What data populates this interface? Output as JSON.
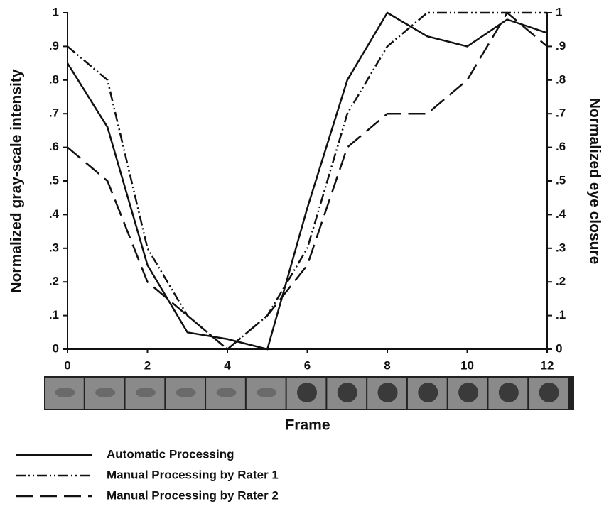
{
  "chart_data": {
    "type": "line",
    "x": [
      0,
      1,
      2,
      3,
      4,
      5,
      6,
      7,
      8,
      9,
      10,
      11,
      12
    ],
    "xlabel": "Frame",
    "ylabel": "Normalized gray-scale intensity",
    "y2label": "Normalized eye closure",
    "xlim": [
      0,
      12
    ],
    "xticks": [
      0,
      2,
      4,
      6,
      8,
      10,
      12
    ],
    "ylim": [
      0,
      1
    ],
    "yticks": [
      0,
      {
        "value": 0.1,
        "label": ".1"
      },
      {
        "value": 0.2,
        "label": ".2"
      },
      {
        "value": 0.3,
        "label": ".3"
      },
      {
        "value": 0.4,
        "label": ".4"
      },
      {
        "value": 0.5,
        "label": ".5"
      },
      {
        "value": 0.6,
        "label": ".6"
      },
      {
        "value": 0.7,
        "label": ".7"
      },
      {
        "value": 0.8,
        "label": ".8"
      },
      {
        "value": 0.9,
        "label": ".9"
      },
      1
    ],
    "y2lim": [
      0,
      1
    ],
    "y2ticks": [
      0,
      {
        "value": 0.1,
        "label": ".1"
      },
      {
        "value": 0.2,
        "label": ".2"
      },
      {
        "value": 0.3,
        "label": ".3"
      },
      {
        "value": 0.4,
        "label": ".4"
      },
      {
        "value": 0.5,
        "label": ".5"
      },
      {
        "value": 0.6,
        "label": ".6"
      },
      {
        "value": 0.7,
        "label": ".7"
      },
      {
        "value": 0.8,
        "label": ".8"
      },
      {
        "value": 0.9,
        "label": ".9"
      },
      1
    ],
    "series": [
      {
        "name": "Automatic Processing",
        "color": "#111111",
        "line_style": "solid",
        "values": [
          0.85,
          0.66,
          0.25,
          0.05,
          0.03,
          0,
          0.42,
          0.8,
          1.0,
          0.93,
          0.9,
          0.98,
          0.94
        ]
      },
      {
        "name": "Manual Processing by Rater 1",
        "color": "#111111",
        "line_style": "dashdotdot",
        "values": [
          0.9,
          0.8,
          0.3,
          0.1,
          0,
          0.1,
          0.3,
          0.7,
          0.9,
          1.0,
          1.0,
          1.0,
          1.0
        ]
      },
      {
        "name": "Manual Processing by Rater 2",
        "color": "#111111",
        "line_style": "dashed",
        "values": [
          0.6,
          0.5,
          0.2,
          0.1,
          0,
          0.1,
          0.25,
          0.6,
          0.7,
          0.7,
          0.8,
          1.0,
          0.9
        ]
      }
    ]
  }
}
